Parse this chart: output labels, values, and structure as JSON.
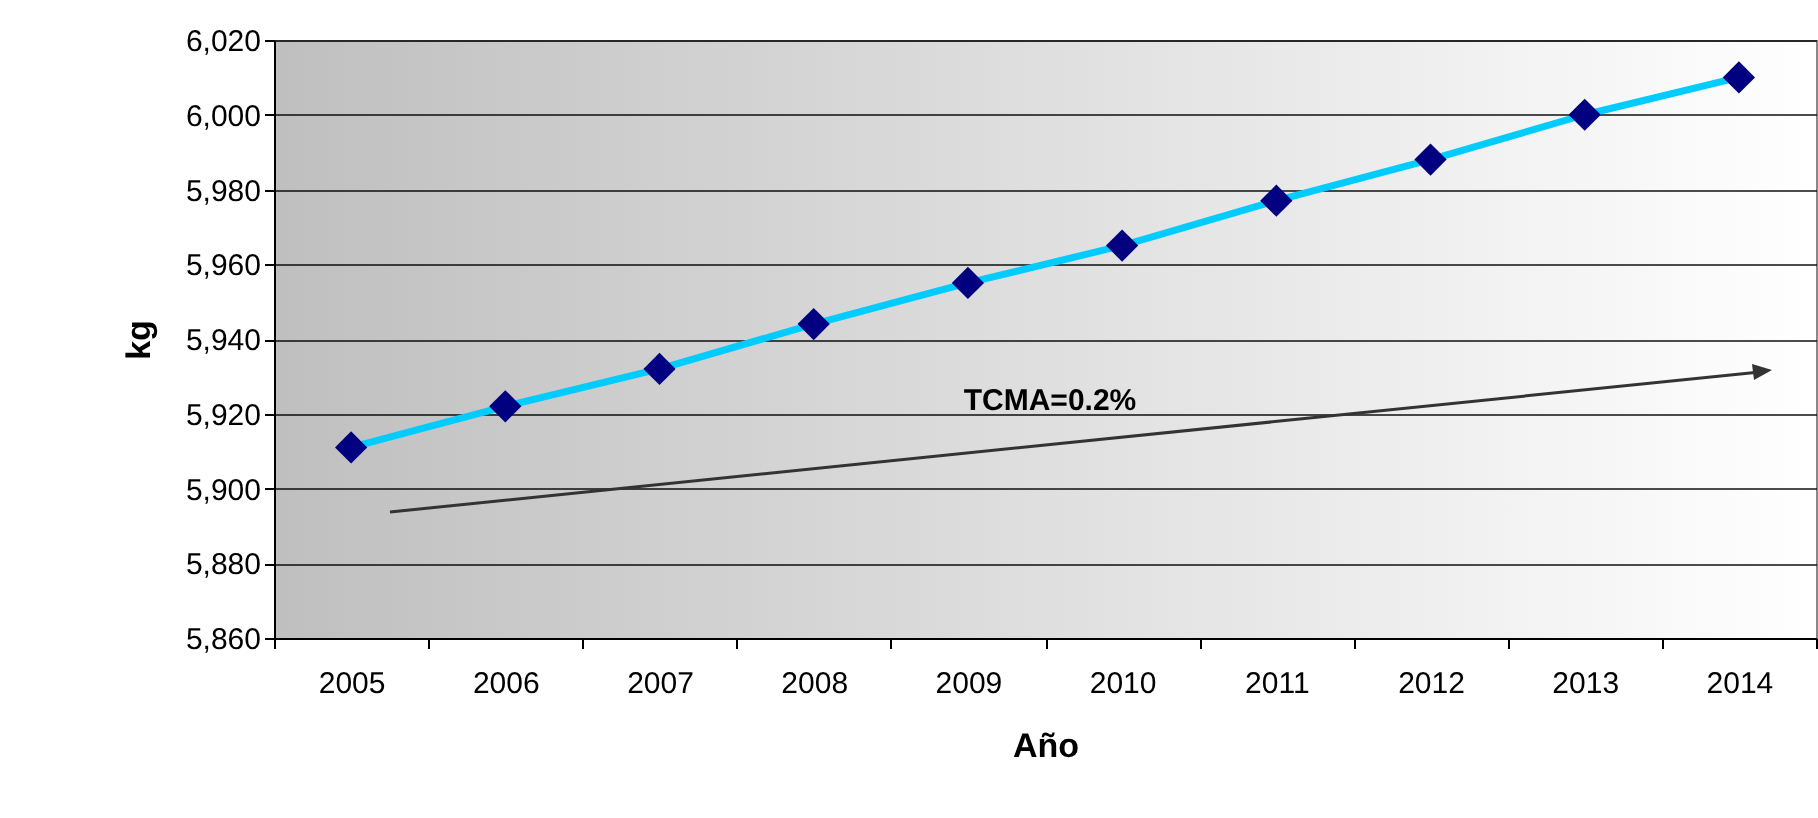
{
  "chart_data": {
    "type": "line",
    "xlabel": "Año",
    "ylabel": "kg",
    "categories": [
      "2005",
      "2006",
      "2007",
      "2008",
      "2009",
      "2010",
      "2011",
      "2012",
      "2013",
      "2014"
    ],
    "series": [
      {
        "color": "#00ccff",
        "colors": [
          "#000080",
          "#000080",
          "#000080",
          "#000080",
          "#000080",
          "#000080",
          "#000080",
          "#000080",
          "#000080",
          "#000080"
        ],
        "values": [
          5911,
          5922,
          5932,
          5944,
          5955,
          5965,
          5977,
          5988,
          6000,
          6010
        ]
      }
    ],
    "ylim": [
      5860,
      6020
    ],
    "yticks": [
      {
        "value": 5860,
        "label": "5,860"
      },
      {
        "value": 5880,
        "label": "5,880"
      },
      {
        "value": 5900,
        "label": "5,900"
      },
      {
        "value": 5920,
        "label": "5,920"
      },
      {
        "value": 5940,
        "label": "5,940"
      },
      {
        "value": 5960,
        "label": "5,960"
      },
      {
        "value": 5980,
        "label": "5,980"
      },
      {
        "value": 6000,
        "label": "6,000"
      },
      {
        "value": 6020,
        "label": "6,020"
      }
    ],
    "grid": "y",
    "marker": "diamond",
    "line_style": "solid",
    "annotations": [
      "TCMA=0.2%"
    ]
  }
}
